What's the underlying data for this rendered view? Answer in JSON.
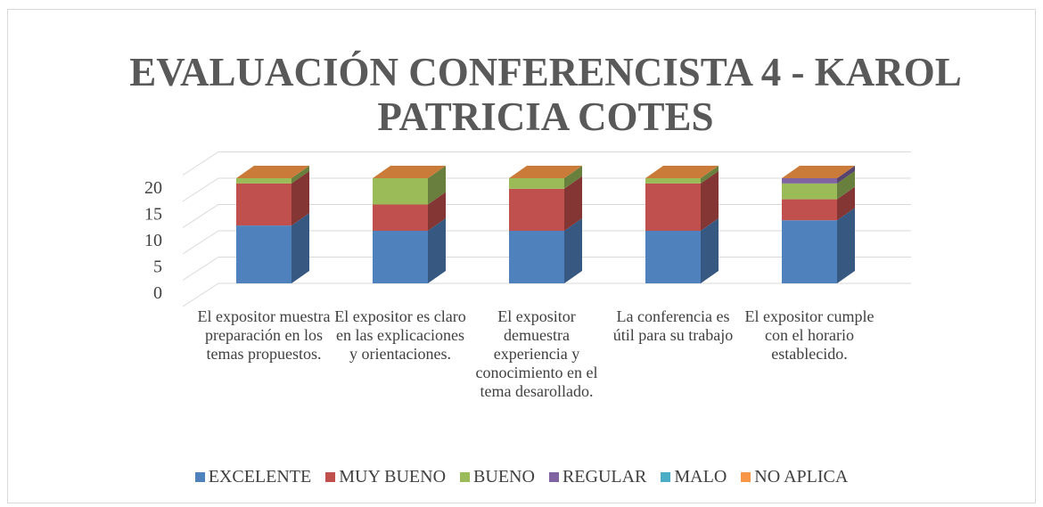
{
  "chart_data": {
    "type": "bar3d_stacked",
    "title": "EVALUACIÓN CONFERENCISTA  4 - KAROL PATRICIA COTES",
    "categories": [
      "El expositor muestra preparación en los temas propuestos.",
      "El  expositor es claro en las explicaciones y orientaciones.",
      "El expositor demuestra experiencia y conocimiento en el tema desarollado.",
      "La conferencia es útil para su trabajo",
      "El expositor cumple con el horario establecido."
    ],
    "series": [
      {
        "name": "EXCELENTE",
        "color": "#4f81bd",
        "values": [
          11,
          10,
          10,
          10,
          12
        ]
      },
      {
        "name": "MUY BUENO",
        "color": "#c0504d",
        "values": [
          8,
          5,
          8,
          9,
          4
        ]
      },
      {
        "name": "BUENO",
        "color": "#9bbb59",
        "values": [
          1,
          5,
          2,
          1,
          3
        ]
      },
      {
        "name": "REGULAR",
        "color": "#8064a2",
        "values": [
          0,
          0,
          0,
          0,
          1
        ]
      },
      {
        "name": "MALO",
        "color": "#4bacc6",
        "values": [
          0,
          0,
          0,
          0,
          0
        ]
      },
      {
        "name": "NO APLICA",
        "color": "#f79646",
        "values": [
          0,
          0,
          0,
          0,
          0
        ]
      }
    ],
    "ylim": [
      0,
      25
    ],
    "yticks": [
      0,
      5,
      10,
      15,
      20
    ],
    "grid": true,
    "legend": "bottom"
  }
}
